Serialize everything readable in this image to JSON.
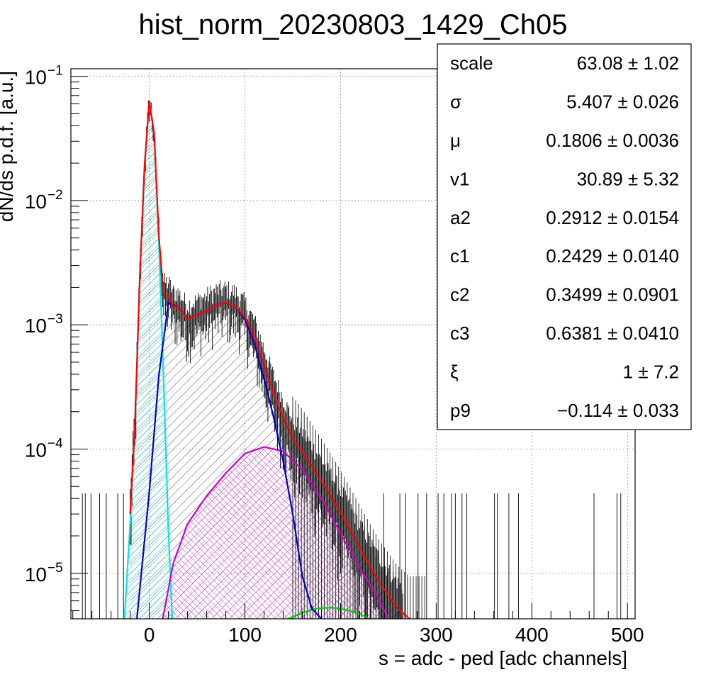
{
  "chart_data": {
    "type": "line",
    "title": "hist_norm_20230803_1429_Ch05",
    "xlabel": "s = adc - ped [adc channels]",
    "ylabel": "dN/ds p.d.f. [a.u.]",
    "xlim": [
      -82,
      508
    ],
    "ylim": [
      4.3e-06,
      0.115
    ],
    "y_scale": "log",
    "grid": true,
    "x_ticks": [
      {
        "value": 0,
        "label": "0"
      },
      {
        "value": 100,
        "label": "100"
      },
      {
        "value": 200,
        "label": "200"
      },
      {
        "value": 300,
        "label": "300"
      },
      {
        "value": 400,
        "label": "400"
      },
      {
        "value": 500,
        "label": "500"
      }
    ],
    "y_ticks": [
      {
        "value": 0.1,
        "base": "10",
        "exp": "−1"
      },
      {
        "value": 0.01,
        "base": "10",
        "exp": "−2"
      },
      {
        "value": 0.001,
        "base": "10",
        "exp": "−3"
      },
      {
        "value": 0.0001,
        "base": "10",
        "exp": "−4"
      },
      {
        "value": 1e-05,
        "base": "10",
        "exp": "−5"
      }
    ],
    "colors": {
      "data": "#000000",
      "total_fit": "#ff0000",
      "pedestal": "#00e5e5",
      "one_pe": "#0000cc",
      "two_pe": "#cc00cc",
      "three_pe": "#00cc00"
    },
    "series": [
      {
        "key": "pedestal",
        "x": [
          -26,
          -20,
          -15,
          -10,
          -5,
          0,
          5,
          10,
          15,
          20,
          24
        ],
        "y": [
          4.3e-06,
          2.5e-05,
          0.00016,
          0.0023,
          0.019,
          0.063,
          0.035,
          0.0048,
          0.00035,
          2.2e-05,
          4.3e-06
        ]
      },
      {
        "key": "one_pe",
        "x": [
          -13,
          0,
          10,
          20,
          30,
          40,
          50,
          60,
          70,
          80,
          90,
          100,
          110,
          120,
          130,
          140,
          150,
          160,
          170,
          180
        ],
        "y": [
          4.3e-06,
          4.5e-05,
          0.00039,
          0.0015,
          0.0014,
          0.0011,
          0.0012,
          0.0013,
          0.00145,
          0.0015,
          0.0014,
          0.0011,
          0.0007,
          0.00037,
          0.00018,
          8e-05,
          3e-05,
          9.5e-06,
          5.2e-06,
          4.3e-06
        ]
      },
      {
        "key": "two_pe",
        "x": [
          14,
          25,
          40,
          60,
          80,
          100,
          120,
          140,
          160,
          180,
          200,
          220,
          240,
          250
        ],
        "y": [
          4.3e-06,
          1.2e-05,
          2.5e-05,
          4.2e-05,
          6.4e-05,
          9.2e-05,
          0.000104,
          9.6e-05,
          6.8e-05,
          4e-05,
          2.1e-05,
          1.1e-05,
          6.2e-06,
          4.3e-06
        ]
      },
      {
        "key": "three_pe",
        "x": [
          145,
          160,
          175,
          190,
          205,
          220,
          230
        ],
        "y": [
          4.3e-06,
          4.8e-06,
          5.2e-06,
          5.3e-06,
          5.1e-06,
          4.7e-06,
          4.3e-06
        ]
      },
      {
        "key": "total_fit",
        "x": [
          -20,
          -15,
          -10,
          -5,
          0,
          5,
          10,
          15,
          20,
          25,
          30,
          40,
          50,
          60,
          70,
          80,
          90,
          100,
          110,
          120,
          130,
          140,
          150,
          160,
          180,
          200,
          220,
          240,
          260,
          272
        ],
        "y": [
          3e-05,
          0.00016,
          0.0023,
          0.019,
          0.063,
          0.035,
          0.0052,
          0.0017,
          0.0017,
          0.0014,
          0.0014,
          0.0011,
          0.0012,
          0.0013,
          0.00145,
          0.0015,
          0.0014,
          0.00115,
          0.0008,
          0.00047,
          0.00028,
          0.00018,
          0.00012,
          9.5e-05,
          5.5e-05,
          3.1e-05,
          1.6e-05,
          8.5e-06,
          5.2e-06,
          4.3e-06
        ]
      }
    ],
    "stats_box": {
      "placement": "top-right",
      "rows": [
        {
          "name": "scale",
          "value": "63.08 ± 1.02"
        },
        {
          "name": "σ",
          "value": "5.407 ± 0.026"
        },
        {
          "name": "μ",
          "value": "0.1806 ± 0.0036"
        },
        {
          "name": "v1",
          "value": "30.89 ± 5.32"
        },
        {
          "name": "a2",
          "value": "0.2912 ± 0.0154"
        },
        {
          "name": "c1",
          "value": "0.2429 ± 0.0140"
        },
        {
          "name": "c2",
          "value": "0.3499 ± 0.0901"
        },
        {
          "name": "c3",
          "value": "0.6381 ± 0.0410"
        },
        {
          "name": "ξ",
          "value": "1 ± 7.2"
        },
        {
          "name": "p9",
          "value": "−0.114 ± 0.033"
        }
      ]
    }
  }
}
